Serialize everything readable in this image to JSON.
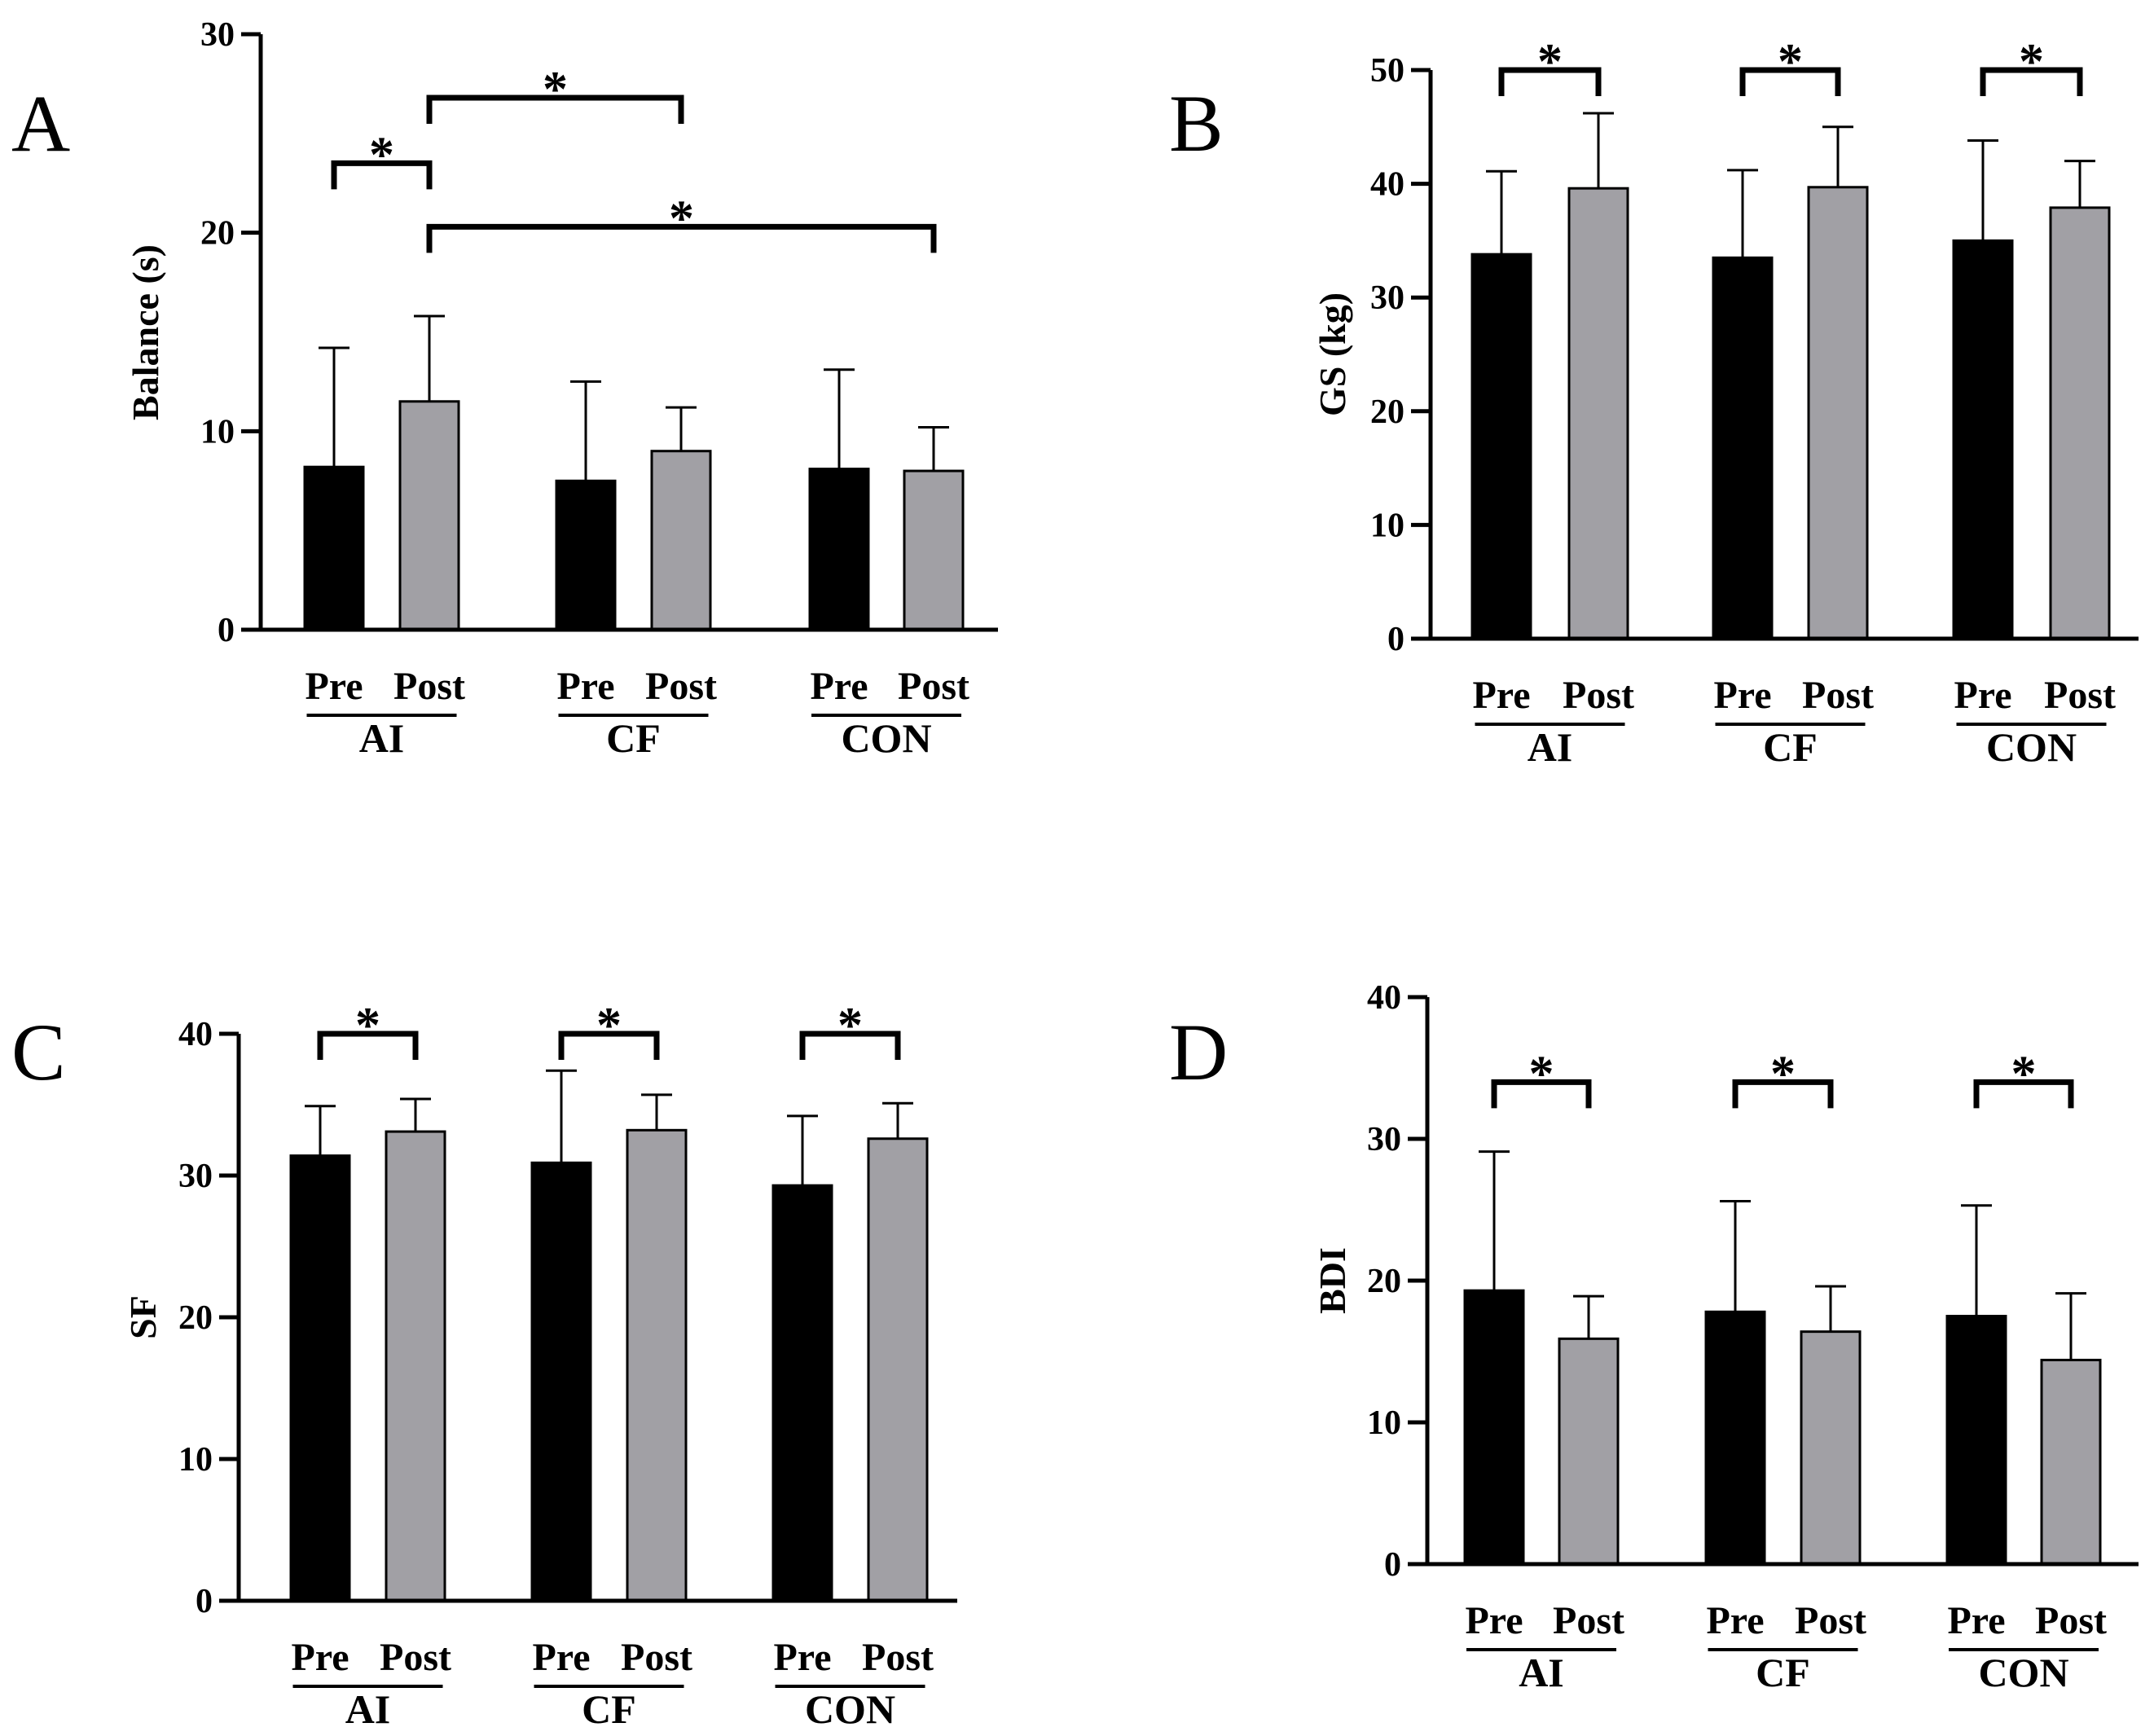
{
  "colors": {
    "pre": "#000000",
    "post": "#a1a0a5",
    "axis": "#000000"
  },
  "chart_data": [
    {
      "panel": "A",
      "type": "bar",
      "ylabel": "Balance (s)",
      "ylim": [
        0,
        30
      ],
      "yticks": [
        0,
        10,
        20,
        30
      ],
      "groups": [
        "AI",
        "CF",
        "CON"
      ],
      "conditions": [
        "Pre",
        "Post"
      ],
      "series": [
        {
          "name": "Pre",
          "values": [
            8.2,
            7.5,
            8.1
          ],
          "errors": [
            6.0,
            5.0,
            5.0
          ]
        },
        {
          "name": "Post",
          "values": [
            11.5,
            9.0,
            8.0
          ],
          "errors": [
            4.3,
            2.2,
            2.2
          ]
        }
      ],
      "significance": [
        {
          "from": [
            0,
            0
          ],
          "to": [
            0,
            1
          ],
          "label": "*",
          "level": 23.5
        },
        {
          "from": [
            0,
            1
          ],
          "to": [
            1,
            1
          ],
          "label": "*",
          "level": 26.8
        },
        {
          "from": [
            0,
            1
          ],
          "to": [
            2,
            1
          ],
          "label": "*",
          "level": 20.3
        }
      ]
    },
    {
      "panel": "B",
      "type": "bar",
      "ylabel": "GS (kg)",
      "ylim": [
        0,
        50
      ],
      "yticks": [
        0,
        10,
        20,
        30,
        40,
        50
      ],
      "groups": [
        "AI",
        "CF",
        "CON"
      ],
      "conditions": [
        "Pre",
        "Post"
      ],
      "series": [
        {
          "name": "Pre",
          "values": [
            33.8,
            33.5,
            35.0
          ],
          "errors": [
            7.3,
            7.7,
            8.8
          ]
        },
        {
          "name": "Post",
          "values": [
            39.6,
            39.7,
            37.9
          ],
          "errors": [
            6.6,
            5.3,
            4.1
          ]
        }
      ],
      "significance": [
        {
          "from": [
            0,
            0
          ],
          "to": [
            0,
            1
          ],
          "label": "*",
          "level": 50.0
        },
        {
          "from": [
            1,
            0
          ],
          "to": [
            1,
            1
          ],
          "label": "*",
          "level": 50.0
        },
        {
          "from": [
            2,
            0
          ],
          "to": [
            2,
            1
          ],
          "label": "*",
          "level": 50.0
        }
      ]
    },
    {
      "panel": "C",
      "type": "bar",
      "ylabel": "SF",
      "ylim": [
        0,
        40
      ],
      "yticks": [
        0,
        10,
        20,
        30,
        40
      ],
      "groups": [
        "AI",
        "CF",
        "CON"
      ],
      "conditions": [
        "Pre",
        "Post"
      ],
      "series": [
        {
          "name": "Pre",
          "values": [
            31.4,
            30.9,
            29.3
          ],
          "errors": [
            3.5,
            6.5,
            4.9
          ]
        },
        {
          "name": "Post",
          "values": [
            33.1,
            33.2,
            32.6
          ],
          "errors": [
            2.3,
            2.5,
            2.5
          ]
        }
      ],
      "significance": [
        {
          "from": [
            0,
            0
          ],
          "to": [
            0,
            1
          ],
          "label": "*",
          "level": 40.0
        },
        {
          "from": [
            1,
            0
          ],
          "to": [
            1,
            1
          ],
          "label": "*",
          "level": 40.0
        },
        {
          "from": [
            2,
            0
          ],
          "to": [
            2,
            1
          ],
          "label": "*",
          "level": 40.0
        }
      ]
    },
    {
      "panel": "D",
      "type": "bar",
      "ylabel": "BDI",
      "ylim": [
        0,
        40
      ],
      "yticks": [
        0,
        10,
        20,
        30,
        40
      ],
      "groups": [
        "AI",
        "CF",
        "CON"
      ],
      "conditions": [
        "Pre",
        "Post"
      ],
      "series": [
        {
          "name": "Pre",
          "values": [
            19.3,
            17.8,
            17.5
          ],
          "errors": [
            9.8,
            7.8,
            7.8
          ]
        },
        {
          "name": "Post",
          "values": [
            15.9,
            16.4,
            14.4
          ],
          "errors": [
            3.0,
            3.2,
            4.7
          ]
        }
      ],
      "significance": [
        {
          "from": [
            0,
            0
          ],
          "to": [
            0,
            1
          ],
          "label": "*",
          "level": 34.0
        },
        {
          "from": [
            1,
            0
          ],
          "to": [
            1,
            1
          ],
          "label": "*",
          "level": 34.0
        },
        {
          "from": [
            2,
            0
          ],
          "to": [
            2,
            1
          ],
          "label": "*",
          "level": 34.0
        }
      ]
    }
  ]
}
